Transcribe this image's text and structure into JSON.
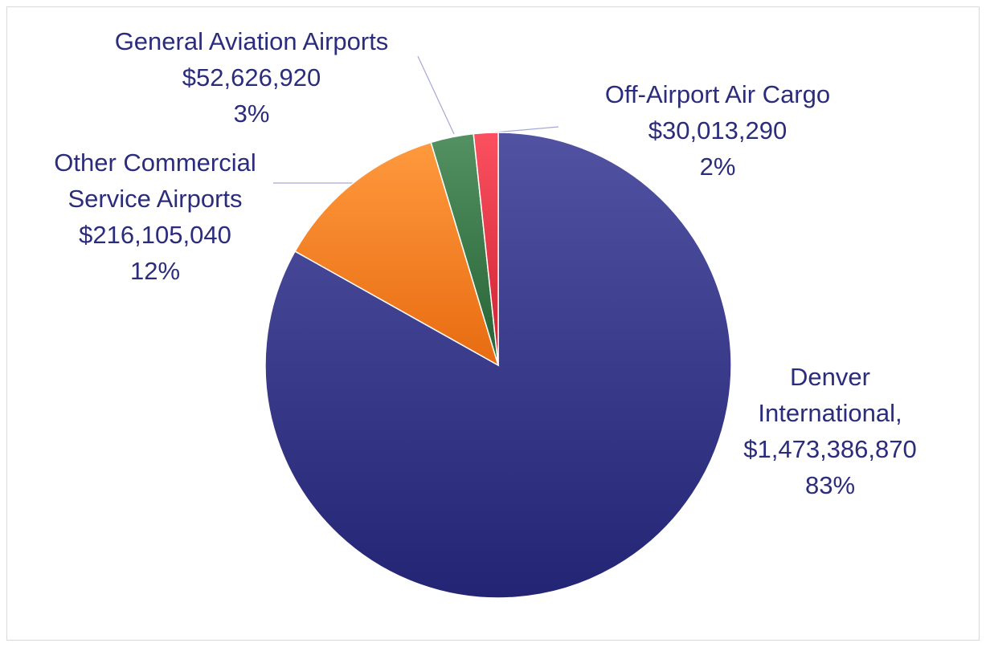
{
  "chart_data": {
    "type": "pie",
    "title": "",
    "start_angle_deg": 0,
    "direction": "clockwise",
    "slices": [
      {
        "name": "Denver International",
        "value": 1473386870,
        "percent": 83,
        "color": "#2b2c7c",
        "label_lines": [
          "Denver",
          "International,",
          "$1,473,386,870",
          "83%"
        ]
      },
      {
        "name": "Other Commercial Service Airports",
        "value": 216105040,
        "percent": 12,
        "color": "#f07318",
        "label_lines": [
          "Other Commercial",
          "Service Airports",
          "$216,105,040",
          "12%"
        ]
      },
      {
        "name": "General Aviation Airports",
        "value": 52626920,
        "percent": 3,
        "color": "#2e6b3c",
        "label_lines": [
          "General Aviation Airports",
          "$52,626,920",
          "3%"
        ]
      },
      {
        "name": "Off-Airport Air Cargo",
        "value": 30013290,
        "percent": 2,
        "color": "#d42a3a",
        "label_lines": [
          "Off-Airport Air Cargo",
          "$30,013,290",
          "2%"
        ]
      }
    ]
  }
}
